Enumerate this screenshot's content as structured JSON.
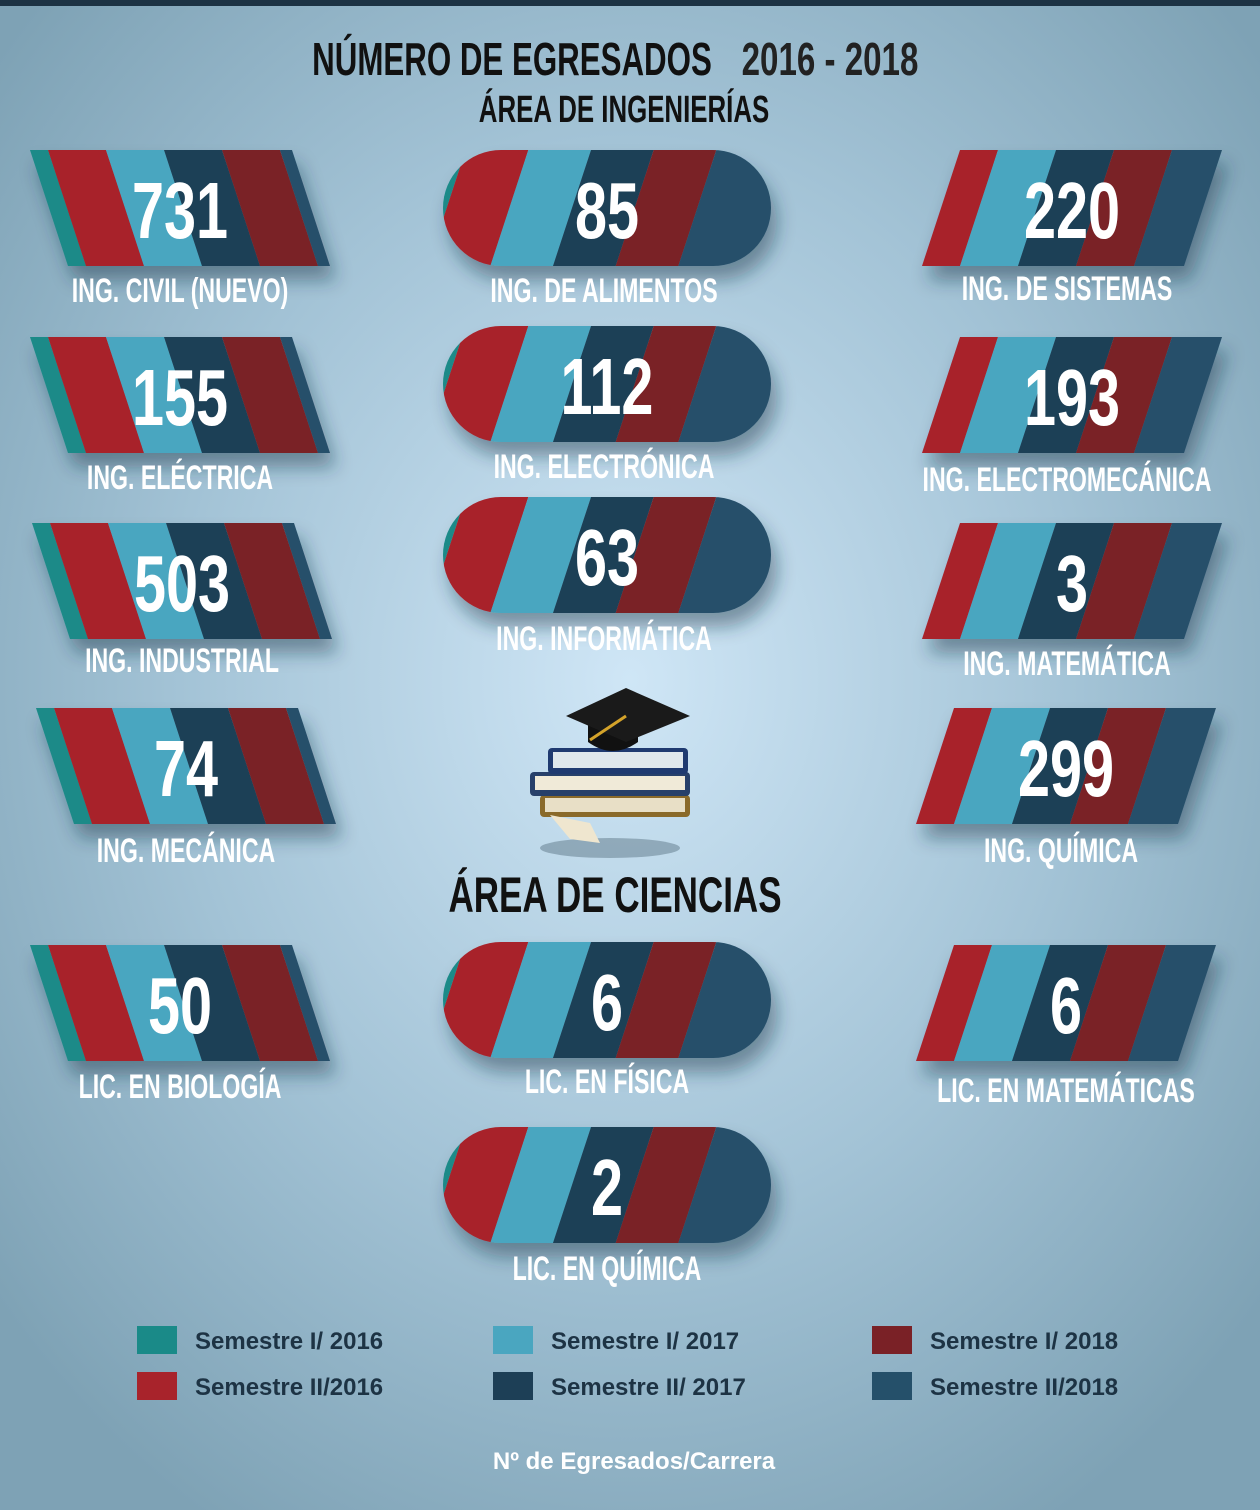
{
  "header": {
    "title": "NÚMERO DE EGRESADOS",
    "years": "2016 - 2018",
    "section": "ÁREA DE INGENIERÍAS"
  },
  "engineering": [
    {
      "value": 731,
      "label": "ING. CIVIL (NUEVO)"
    },
    {
      "value": 85,
      "label": "ING. DE ALIMENTOS"
    },
    {
      "value": 220,
      "label": "ING. DE SISTEMAS"
    },
    {
      "value": 155,
      "label": "ING. ELÉCTRICA"
    },
    {
      "value": 112,
      "label": "ING. ELECTRÓNICA"
    },
    {
      "value": 193,
      "label": "ING. ELECTROMECÁNICA"
    },
    {
      "value": 503,
      "label": "ING. INDUSTRIAL"
    },
    {
      "value": 63,
      "label": "ING. INFORMÁTICA"
    },
    {
      "value": 3,
      "label": "ING. MATEMÁTICA"
    },
    {
      "value": 74,
      "label": "ING. MECÁNICA"
    },
    {
      "value": 299,
      "label": "ING. QUÍMICA"
    }
  ],
  "sciences": {
    "title": "ÁREA DE CIENCIAS",
    "cards": [
      {
        "value": 50,
        "label": "LIC. EN BIOLOGÍA"
      },
      {
        "value": 6,
        "label": "LIC. EN FÍSICA"
      },
      {
        "value": 6,
        "label": "LIC. EN MATEMÁTICAS"
      },
      {
        "value": 2,
        "label": "LIC. EN QUÍMICA"
      }
    ]
  },
  "legend": [
    {
      "name": "Semestre I/ 2016",
      "color": "#1a8a88"
    },
    {
      "name": "Semestre II/2016",
      "color": "#a8232b"
    },
    {
      "name": "Semestre I/ 2017",
      "color": "#4aa6c0"
    },
    {
      "name": "Semestre II/ 2017",
      "color": "#1d3f56"
    },
    {
      "name": "Semestre I/ 2018",
      "color": "#7a2126"
    },
    {
      "name": "Semestre II/2018",
      "color": "#25506a"
    }
  ],
  "footer": "Nº de Egresados/Carrera"
}
